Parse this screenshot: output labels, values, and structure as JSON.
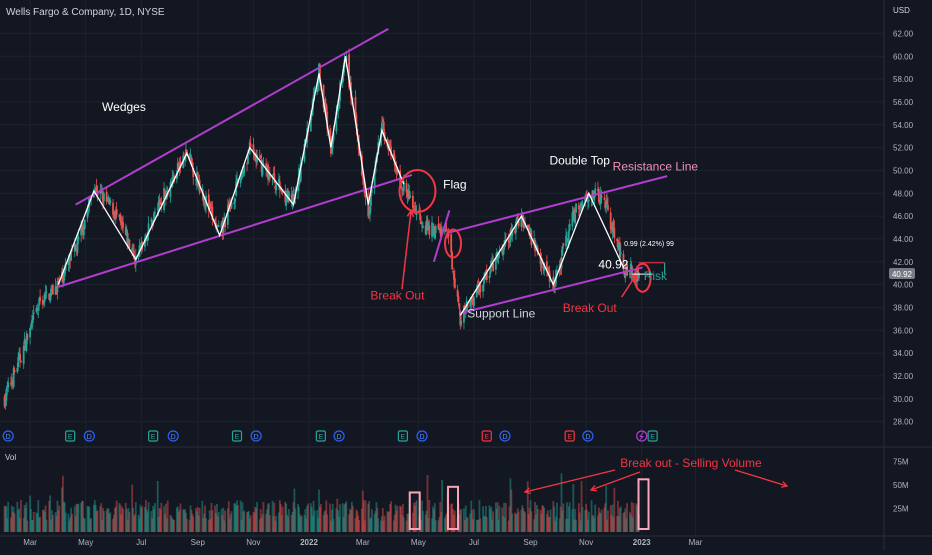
{
  "header": {
    "symbol": "Wells Fargo & Company, 1D, NYSE"
  },
  "currency": "USD",
  "last_price": "40.92",
  "chart_data": [
    {
      "type": "candlestick",
      "symbol": "WFC",
      "timeframe": "1D",
      "exchange": "NYSE",
      "x_months": [
        "Mar",
        "May",
        "Jul",
        "Sep",
        "Nov",
        "2022",
        "Mar",
        "May",
        "Jul",
        "Sep",
        "Nov",
        "2023",
        "Mar"
      ],
      "y_ticks": [
        "62.00",
        "60.00",
        "58.00",
        "56.00",
        "54.00",
        "52.00",
        "50.00",
        "48.00",
        "46.00",
        "44.00",
        "42.00",
        "40.00",
        "38.00",
        "36.00",
        "34.00",
        "32.00",
        "30.00",
        "28.00"
      ],
      "ylim": [
        27,
        63
      ],
      "swing_points": [
        {
          "date": "2021-02-01",
          "price": 30.0
        },
        {
          "date": "2021-02-20",
          "price": 34.0
        },
        {
          "date": "2021-03-12",
          "price": 38.5
        },
        {
          "date": "2021-04-01",
          "price": 40.0
        },
        {
          "date": "2021-04-22",
          "price": 43.5
        },
        {
          "date": "2021-05-10",
          "price": 48.5
        },
        {
          "date": "2021-06-01",
          "price": 46.5
        },
        {
          "date": "2021-06-25",
          "price": 42.2
        },
        {
          "date": "2021-07-20",
          "price": 47.0
        },
        {
          "date": "2021-08-20",
          "price": 51.5
        },
        {
          "date": "2021-09-25",
          "price": 44.3
        },
        {
          "date": "2021-10-28",
          "price": 51.8
        },
        {
          "date": "2021-12-15",
          "price": 47.0
        },
        {
          "date": "2022-01-12",
          "price": 58.8
        },
        {
          "date": "2022-01-25",
          "price": 52.0
        },
        {
          "date": "2022-02-10",
          "price": 60.0
        },
        {
          "date": "2022-03-07",
          "price": 46.5
        },
        {
          "date": "2022-03-22",
          "price": 54.0
        },
        {
          "date": "2022-04-08",
          "price": 49.5
        },
        {
          "date": "2022-04-25",
          "price": 47.0
        },
        {
          "date": "2022-05-10",
          "price": 45.0
        },
        {
          "date": "2022-06-01",
          "price": 44.5
        },
        {
          "date": "2022-06-08",
          "price": 41.5
        },
        {
          "date": "2022-06-16",
          "price": 37.0
        },
        {
          "date": "2022-07-05",
          "price": 39.5
        },
        {
          "date": "2022-08-01",
          "price": 43.0
        },
        {
          "date": "2022-08-22",
          "price": 46.0
        },
        {
          "date": "2022-09-26",
          "price": 40.0
        },
        {
          "date": "2022-10-20",
          "price": 46.5
        },
        {
          "date": "2022-11-04",
          "price": 48.0
        },
        {
          "date": "2022-11-22",
          "price": 47.3
        },
        {
          "date": "2022-12-12",
          "price": 41.5
        },
        {
          "date": "2022-12-29",
          "price": 40.92
        }
      ],
      "zigzag": [
        {
          "date": "2021-04-01",
          "price": 40.0
        },
        {
          "date": "2021-05-10",
          "price": 48.2
        },
        {
          "date": "2021-06-25",
          "price": 42.2
        },
        {
          "date": "2021-08-20",
          "price": 51.5
        },
        {
          "date": "2021-09-25",
          "price": 44.3
        },
        {
          "date": "2021-10-28",
          "price": 52.0
        },
        {
          "date": "2021-12-15",
          "price": 47.0
        },
        {
          "date": "2022-01-12",
          "price": 58.5
        },
        {
          "date": "2022-01-25",
          "price": 52.0
        },
        {
          "date": "2022-02-10",
          "price": 60.0
        },
        {
          "date": "2022-03-07",
          "price": 47.0
        },
        {
          "date": "2022-03-22",
          "price": 53.5
        },
        {
          "date": "2022-04-15",
          "price": 48.8
        }
      ],
      "zigzag2": [
        {
          "date": "2022-06-16",
          "price": 37.3
        },
        {
          "date": "2022-08-22",
          "price": 46.0
        },
        {
          "date": "2022-09-26",
          "price": 40.0
        },
        {
          "date": "2022-11-04",
          "price": 48.0
        },
        {
          "date": "2022-12-12",
          "price": 41.5
        }
      ],
      "trend_lines": [
        {
          "name": "wedge-upper",
          "p1": {
            "date": "2021-04-20",
            "price": 47.0
          },
          "p2": {
            "date": "2022-03-29",
            "price": 62.4
          }
        },
        {
          "name": "wedge-lower",
          "p1": {
            "date": "2021-04-01",
            "price": 39.8
          },
          "p2": {
            "date": "2022-04-24",
            "price": 49.6
          }
        },
        {
          "name": "flag-pole",
          "p1": {
            "date": "2022-05-18",
            "price": 42.0
          },
          "p2": {
            "date": "2022-06-04",
            "price": 46.5
          }
        },
        {
          "name": "resistance",
          "p1": {
            "date": "2022-06-01",
            "price": 44.5
          },
          "p2": {
            "date": "2023-01-29",
            "price": 49.5
          }
        },
        {
          "name": "support",
          "p1": {
            "date": "2022-06-16",
            "price": 37.5
          },
          "p2": {
            "date": "2023-01-02",
            "price": 41.5
          }
        }
      ],
      "annotations": [
        {
          "text": "Wedges",
          "date": "2021-06-12",
          "price": 55.2,
          "color": "#ffffff"
        },
        {
          "text": "Flag",
          "date": "2022-06-10",
          "price": 48.4,
          "color": "#ffffff"
        },
        {
          "text": "Double Top",
          "date": "2022-10-25",
          "price": 50.5,
          "color": "#ffffff"
        },
        {
          "text": "Resistance Line",
          "date": "2023-01-16",
          "price": 50.0,
          "color": "#f28fb8"
        },
        {
          "text": "Support Line",
          "date": "2022-07-31",
          "price": 37.1,
          "color": "#d1d4dc"
        },
        {
          "text": "Break Out",
          "date": "2022-04-08",
          "price": 38.7,
          "color": "#f23645"
        },
        {
          "text": "Break Out",
          "date": "2022-11-05",
          "price": 37.6,
          "color": "#f23645"
        },
        {
          "text": "40.92",
          "date": "2022-12-01",
          "price": 41.4,
          "color": "#ffffff"
        },
        {
          "text": "0.99 (2.42%) 99",
          "date": "2023-01-09",
          "price": 43.4,
          "color": "#ffffff"
        },
        {
          "text": "Risk",
          "date": "2023-01-16",
          "price": 40.4,
          "color": "#26a69a"
        }
      ],
      "circles": [
        {
          "name": "break-out-circle-wedge",
          "date": "2022-04-30",
          "price": 48.2
        },
        {
          "name": "break-out-circle-flag",
          "date": "2022-06-08",
          "price": 43.6
        },
        {
          "name": "break-out-circle-double-top",
          "date": "2023-01-02",
          "price": 40.6
        }
      ],
      "arrows": [
        {
          "name": "break-out-arrow-wedge",
          "from": {
            "date": "2022-04-13",
            "price": 39.6
          },
          "to": {
            "date": "2022-04-23",
            "price": 46.5
          }
        },
        {
          "name": "break-out-arrow-double-top",
          "from": {
            "date": "2022-12-10",
            "price": 38.9
          },
          "to": {
            "date": "2022-12-27",
            "price": 41.0
          }
        }
      ],
      "risk": {
        "entry": 40.92,
        "stop": 41.91
      },
      "events": [
        {
          "date": "2021-02-05",
          "type": "D"
        },
        {
          "date": "2021-04-14",
          "type": "E"
        },
        {
          "date": "2021-05-05",
          "type": "D"
        },
        {
          "date": "2021-07-14",
          "type": "E"
        },
        {
          "date": "2021-08-05",
          "type": "D"
        },
        {
          "date": "2021-10-14",
          "type": "E"
        },
        {
          "date": "2021-11-04",
          "type": "D"
        },
        {
          "date": "2022-01-14",
          "type": "E"
        },
        {
          "date": "2022-02-03",
          "type": "D"
        },
        {
          "date": "2022-04-14",
          "type": "E"
        },
        {
          "date": "2022-05-05",
          "type": "D"
        },
        {
          "date": "2022-07-15",
          "type": "E"
        },
        {
          "date": "2022-08-04",
          "type": "D"
        },
        {
          "date": "2022-10-14",
          "type": "E"
        },
        {
          "date": "2022-11-03",
          "type": "D"
        },
        {
          "date": "2023-01-01",
          "type": "split"
        },
        {
          "date": "2023-01-13",
          "type": "E"
        }
      ],
      "volume": {
        "label": "Vol",
        "y_ticks": [
          "75M",
          "50M",
          "25M"
        ],
        "ylim": [
          0,
          85
        ],
        "title": "Break out - Selling Volume",
        "highlight_boxes": [
          {
            "date": "2022-04-27",
            "value": 42
          },
          {
            "date": "2022-06-08",
            "value": 48
          },
          {
            "date": "2023-01-03",
            "value": 56
          }
        ]
      },
      "colors": {
        "up": "#26a69a",
        "down": "#ef5350",
        "trend": "#b13dcf",
        "annotation_red": "#f23645",
        "zigzag": "#ffffff",
        "resistance_text": "#f28fb8"
      }
    }
  ]
}
